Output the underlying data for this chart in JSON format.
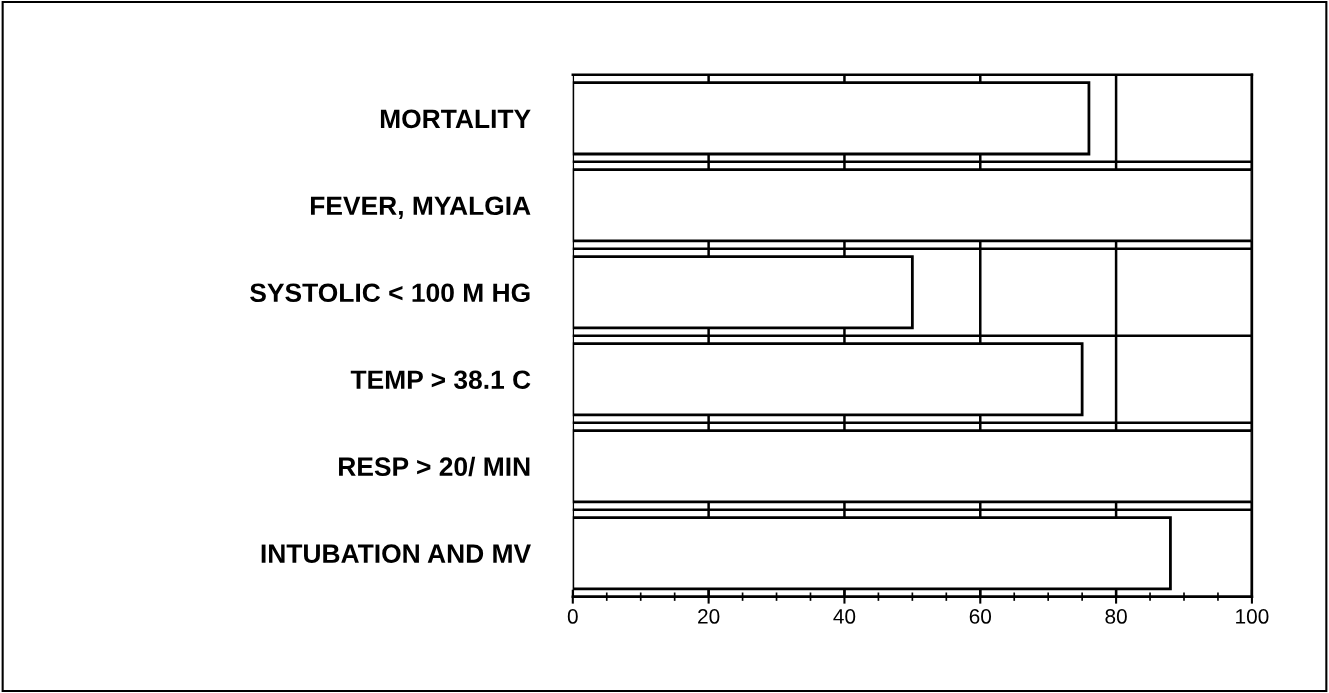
{
  "chart_data": {
    "type": "bar",
    "orientation": "horizontal",
    "categories": [
      "MORTALITY",
      "FEVER, MYALGIA",
      "SYSTOLIC < 100 M HG",
      "TEMP > 38.1 C",
      "RESP > 20/ MIN",
      "INTUBATION AND MV"
    ],
    "values": [
      76,
      100,
      50,
      75,
      100,
      88
    ],
    "color": "#ffffff",
    "xlim": [
      0,
      100
    ],
    "xticks": [
      0,
      20,
      40,
      60,
      80,
      100
    ],
    "grid": "x"
  }
}
